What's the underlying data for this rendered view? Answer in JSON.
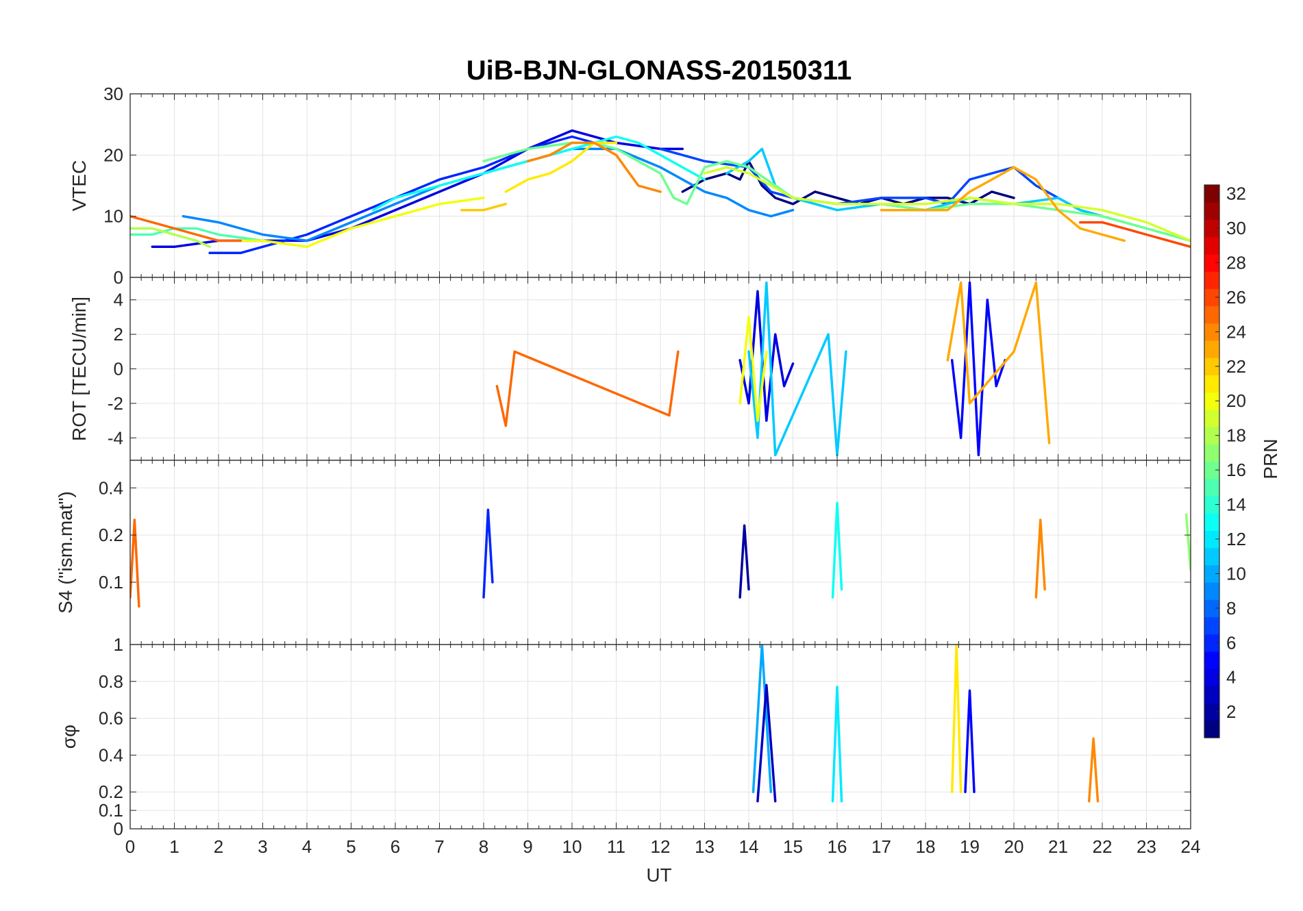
{
  "figure": {
    "title": "UiB-BJN-GLONASS-20150311",
    "xlabel": "UT",
    "colorbar_label": "PRN"
  },
  "chart_data": [
    {
      "type": "line",
      "panel": "vtec",
      "ylabel": "VTEC",
      "xlim": [
        0,
        24
      ],
      "ylim": [
        0,
        30
      ],
      "yticks": [
        0,
        10,
        20,
        30
      ],
      "grid": true,
      "note": "many overlapping per-PRN series; values approximated",
      "series": [
        {
          "prn": 1,
          "x": [
            12.5,
            13.0,
            13.5,
            13.8,
            14.0,
            14.3,
            14.6,
            15.0,
            15.5,
            16.0,
            16.5,
            17.0,
            17.5,
            18.0,
            18.5,
            19.0,
            19.5,
            20.0
          ],
          "y": [
            14,
            16,
            17,
            16,
            19,
            15,
            13,
            12,
            14,
            13,
            12,
            13,
            12,
            13,
            13,
            12,
            14,
            13
          ]
        },
        {
          "prn": 4,
          "x": [
            0.5,
            1.0,
            2.0,
            3.0,
            4.0,
            5.0,
            6.0,
            7.0,
            8.0,
            9.0,
            10.0,
            11.0,
            12.0,
            12.5
          ],
          "y": [
            5,
            5,
            6,
            6,
            6,
            8,
            11,
            14,
            17,
            21,
            24,
            22,
            21,
            21
          ]
        },
        {
          "prn": 6,
          "x": [
            1.8,
            2.5,
            3.0,
            3.5,
            4.0,
            5.0,
            6.0,
            7.0,
            8.0,
            9.0,
            9.5,
            10.0,
            10.5
          ],
          "y": [
            4,
            4,
            5,
            6,
            7,
            10,
            13,
            16,
            18,
            21,
            22,
            23,
            22
          ]
        },
        {
          "prn": 7,
          "x": [
            12.0,
            13.0,
            14.0,
            14.5,
            15.0,
            16.0,
            17.0,
            18.0,
            18.5,
            19.0,
            19.5,
            20.0,
            20.5,
            21.0,
            21.5,
            22.0
          ],
          "y": [
            21,
            19,
            18,
            14,
            13,
            12,
            13,
            13,
            12,
            16,
            17,
            18,
            15,
            13,
            11,
            10
          ]
        },
        {
          "prn": 9,
          "x": [
            1.2,
            2.0,
            3.0,
            4.0,
            5.0,
            6.0,
            7.0,
            8.0,
            9.0,
            10.0,
            11.0,
            12.0,
            13.0,
            13.5,
            14.0,
            14.5,
            15.0
          ],
          "y": [
            10,
            9,
            7,
            6,
            9,
            12,
            15,
            17,
            19,
            21,
            21,
            18,
            14,
            13,
            11,
            10,
            11
          ]
        },
        {
          "prn": 11,
          "x": [
            13.5,
            14.0,
            14.3,
            14.6,
            15.0,
            15.5,
            16.0,
            17.0,
            18.0,
            19.0,
            20.0,
            21.0,
            21.5,
            22.0,
            23.0,
            24.0
          ],
          "y": [
            17,
            19,
            21,
            15,
            13,
            12,
            11,
            12,
            11,
            13,
            12,
            13,
            11,
            10,
            8,
            6
          ]
        },
        {
          "prn": 13,
          "x": [
            5.5,
            6.0,
            6.5,
            7.0,
            8.0,
            9.0,
            10.0,
            10.5,
            11.0,
            11.5,
            12.0,
            13.0
          ],
          "y": [
            11,
            13,
            14,
            15,
            17,
            19,
            21,
            22,
            23,
            22,
            20,
            16
          ]
        },
        {
          "prn": 15,
          "x": [
            0.0,
            0.5,
            1.0,
            1.5,
            2.0,
            3.0,
            4.0
          ],
          "y": [
            7,
            7,
            8,
            8,
            7,
            6,
            5
          ]
        },
        {
          "prn": 16,
          "x": [
            8.0,
            9.0,
            10.0,
            10.5,
            11.0,
            11.5,
            12.0,
            12.3,
            12.6,
            13.0,
            13.5,
            14.0,
            15.0,
            16.0,
            17.0,
            18.0,
            19.0,
            20.0,
            21.0,
            22.0,
            23.0,
            24.0
          ],
          "y": [
            19,
            21,
            22,
            22,
            21,
            19,
            17,
            13,
            12,
            18,
            19,
            18,
            13,
            12,
            12,
            11,
            12,
            12,
            11,
            10,
            8,
            6
          ]
        },
        {
          "prn": 18,
          "x": [
            0.0,
            0.5,
            1.0,
            1.5,
            1.8
          ],
          "y": [
            8,
            8,
            7,
            6,
            5
          ]
        },
        {
          "prn": 19,
          "x": [
            13.0,
            13.5,
            14.0,
            15.0,
            16.0,
            17.0,
            18.0,
            19.0,
            20.0,
            21.0,
            22.0,
            23.0,
            24.0
          ],
          "y": [
            17,
            18,
            17,
            13,
            12,
            12,
            12,
            13,
            12,
            12,
            11,
            9,
            6
          ]
        },
        {
          "prn": 20,
          "x": [
            2.5,
            3.0,
            4.0,
            5.0,
            6.0,
            7.0,
            8.0
          ],
          "y": [
            6,
            6,
            5,
            8,
            10,
            12,
            13
          ]
        },
        {
          "prn": 21,
          "x": [
            8.5,
            9.0,
            9.5,
            10.0,
            10.5,
            11.0
          ],
          "y": [
            14,
            16,
            17,
            19,
            22,
            22
          ]
        },
        {
          "prn": 22,
          "x": [
            7.5,
            8.0,
            8.5
          ],
          "y": [
            11,
            11,
            12
          ]
        },
        {
          "prn": 23,
          "x": [
            17.0,
            18.0,
            18.5,
            19.0,
            19.5,
            20.0,
            20.5,
            21.0,
            21.5,
            22.0,
            22.5
          ],
          "y": [
            11,
            11,
            11,
            14,
            16,
            18,
            16,
            11,
            8,
            7,
            6
          ]
        },
        {
          "prn": 24,
          "x": [
            9.0,
            9.5,
            10.0,
            10.5,
            11.0,
            11.5,
            12.0
          ],
          "y": [
            19,
            20,
            22,
            22,
            20,
            15,
            14
          ]
        },
        {
          "prn": 25,
          "x": [
            0.0,
            0.5,
            1.0,
            1.5,
            2.0,
            2.5
          ],
          "y": [
            10,
            9,
            8,
            7,
            6,
            6
          ]
        },
        {
          "prn": 26,
          "x": [
            21.5,
            22.0,
            22.5,
            23.0,
            23.5,
            24.0
          ],
          "y": [
            9,
            9,
            8,
            7,
            6,
            5
          ]
        }
      ]
    },
    {
      "type": "line",
      "panel": "rot",
      "ylabel": "ROT [TECU/min]",
      "xlim": [
        0,
        24
      ],
      "ylim": [
        -5.3,
        5.3
      ],
      "yticks": [
        -4,
        -2,
        0,
        2,
        4
      ],
      "grid": true,
      "note": "noisy fluctuations around 0; spikes up to about +/-5 near 14 UT, 16 UT and 19 UT",
      "series": [
        {
          "prn": 4,
          "x": [
            13.8,
            14.0,
            14.2,
            14.4,
            14.6,
            14.8,
            15.0
          ],
          "y": [
            0.5,
            -2,
            4.5,
            -3,
            2,
            -1,
            0.3
          ]
        },
        {
          "prn": 5,
          "x": [
            18.6,
            18.8,
            19.0,
            19.2,
            19.4,
            19.6,
            19.8
          ],
          "y": [
            0.5,
            -4,
            5,
            -5,
            4,
            -1,
            0.5
          ]
        },
        {
          "prn": 11,
          "x": [
            14.0,
            14.2,
            14.4,
            14.6,
            15.8,
            16.0,
            16.2
          ],
          "y": [
            1,
            -4,
            5,
            -5,
            2,
            -5,
            1
          ]
        },
        {
          "prn": 20,
          "x": [
            13.8,
            14.0,
            14.2,
            14.4
          ],
          "y": [
            -2,
            3,
            -3,
            1
          ]
        },
        {
          "prn": 23,
          "x": [
            18.5,
            18.8,
            19.0,
            20.0,
            20.5,
            20.8
          ],
          "y": [
            0.5,
            5,
            -2,
            1,
            5,
            -4.3
          ]
        },
        {
          "prn": 25,
          "x": [
            8.3,
            8.5,
            8.7,
            12.2,
            12.4
          ],
          "y": [
            -1,
            -3.3,
            1,
            -2.7,
            1
          ]
        }
      ]
    },
    {
      "type": "line",
      "panel": "s4",
      "ylabel": "S4 (\"ism.mat\")",
      "xlim": [
        0,
        24
      ],
      "ylim": [
        0.04,
        0.6
      ],
      "yticks": [
        0.1,
        0.2,
        0.4
      ],
      "yscale": "log",
      "grid": true,
      "note": "baseline about 0.05-0.1 with spikes",
      "series": [
        {
          "prn": 6,
          "x": [
            8.0,
            8.1,
            8.2
          ],
          "y": [
            0.08,
            0.29,
            0.1
          ]
        },
        {
          "prn": 2,
          "x": [
            13.8,
            13.9,
            14.0
          ],
          "y": [
            0.08,
            0.23,
            0.09
          ]
        },
        {
          "prn": 13,
          "x": [
            15.9,
            16.0,
            16.1
          ],
          "y": [
            0.08,
            0.32,
            0.09
          ]
        },
        {
          "prn": 24,
          "x": [
            20.5,
            20.6,
            20.7
          ],
          "y": [
            0.08,
            0.25,
            0.09
          ]
        },
        {
          "prn": 17,
          "x": [
            23.9,
            24.0
          ],
          "y": [
            0.27,
            0.12
          ]
        },
        {
          "prn": 25,
          "x": [
            0.0,
            0.1,
            0.2
          ],
          "y": [
            0.08,
            0.25,
            0.07
          ]
        }
      ]
    },
    {
      "type": "line",
      "panel": "sigma_phi",
      "ylabel": "σφ",
      "xlim": [
        0,
        24
      ],
      "ylim": [
        0,
        1
      ],
      "yticks": [
        0,
        0.1,
        0.2,
        0.4,
        0.6,
        0.8,
        1
      ],
      "grid": true,
      "note": "baseline about 0.1-0.2 with spikes",
      "series": [
        {
          "prn": 10,
          "x": [
            14.1,
            14.3,
            14.5
          ],
          "y": [
            0.2,
            1.0,
            0.2
          ]
        },
        {
          "prn": 3,
          "x": [
            14.2,
            14.4,
            14.6
          ],
          "y": [
            0.15,
            0.78,
            0.15
          ]
        },
        {
          "prn": 12,
          "x": [
            15.9,
            16.0,
            16.1
          ],
          "y": [
            0.15,
            0.77,
            0.15
          ]
        },
        {
          "prn": 21,
          "x": [
            18.6,
            18.7,
            18.8
          ],
          "y": [
            0.2,
            1.0,
            0.2
          ]
        },
        {
          "prn": 5,
          "x": [
            18.9,
            19.0,
            19.1
          ],
          "y": [
            0.2,
            0.75,
            0.2
          ]
        },
        {
          "prn": 24,
          "x": [
            21.7,
            21.8,
            21.9
          ],
          "y": [
            0.15,
            0.49,
            0.15
          ]
        }
      ]
    }
  ],
  "colorbar": {
    "label": "PRN",
    "range": [
      1,
      32
    ],
    "ticks": [
      2,
      4,
      6,
      8,
      10,
      12,
      14,
      16,
      18,
      20,
      22,
      24,
      26,
      28,
      30,
      32
    ],
    "colormap": "jet"
  }
}
